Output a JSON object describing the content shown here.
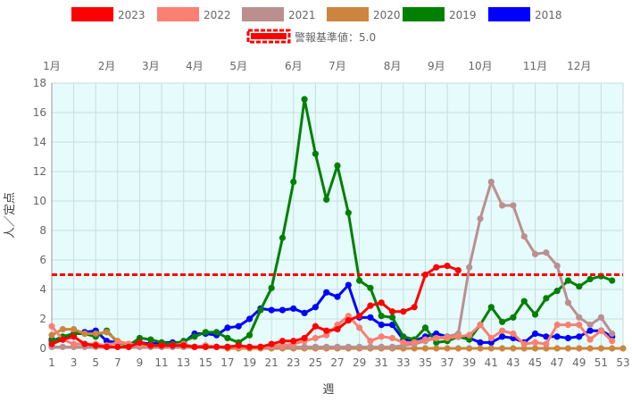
{
  "chart_data": {
    "type": "line",
    "xlabel": "週",
    "ylabel": "人／定点",
    "ylim": [
      0,
      18
    ],
    "yticks": [
      0,
      2,
      4,
      6,
      8,
      10,
      12,
      14,
      16,
      18
    ],
    "xlim": [
      1,
      53
    ],
    "xticks": [
      1,
      3,
      5,
      7,
      9,
      11,
      13,
      15,
      17,
      19,
      21,
      23,
      25,
      27,
      29,
      31,
      33,
      35,
      37,
      39,
      41,
      43,
      45,
      47,
      49,
      51,
      53
    ],
    "month_labels": [
      {
        "label": "1月",
        "week": 1
      },
      {
        "label": "2月",
        "week": 6
      },
      {
        "label": "3月",
        "week": 10
      },
      {
        "label": "4月",
        "week": 14
      },
      {
        "label": "5月",
        "week": 18
      },
      {
        "label": "6月",
        "week": 23
      },
      {
        "label": "7月",
        "week": 27
      },
      {
        "label": "8月",
        "week": 32
      },
      {
        "label": "9月",
        "week": 36
      },
      {
        "label": "10月",
        "week": 40
      },
      {
        "label": "11月",
        "week": 45
      },
      {
        "label": "12月",
        "week": 49
      }
    ],
    "threshold": {
      "label": "警報基準値：5.0",
      "value": 5.0,
      "color": "#ff0000"
    },
    "grid": true,
    "plot_background": "#e6fbfb",
    "legend_position": "top",
    "series": [
      {
        "name": "2023",
        "color": "#ff0000",
        "values": [
          0.3,
          0.6,
          0.8,
          0.3,
          0.2,
          0.1,
          0.1,
          0.1,
          0.4,
          0.2,
          0.2,
          0.2,
          0.2,
          0.1,
          0.1,
          0.1,
          0.1,
          0.2,
          0.1,
          0.1,
          0.3,
          0.5,
          0.5,
          0.7,
          1.5,
          1.2,
          1.3,
          1.9,
          2.2,
          2.9,
          3.1,
          2.5,
          2.5,
          2.8,
          5.0,
          5.5,
          5.6,
          5.3
        ]
      },
      {
        "name": "2022",
        "color": "#fa8072",
        "values": [
          1.5,
          0.6,
          0.3,
          0.3,
          0.3,
          0.2,
          0.4,
          0.3,
          0.2,
          0.2,
          0.2,
          0.2,
          0.3,
          0.1,
          0.2,
          0.1,
          0.1,
          0.1,
          0.1,
          0.1,
          0.2,
          0.2,
          0.3,
          0.5,
          0.7,
          0.9,
          1.6,
          2.2,
          1.4,
          0.5,
          0.8,
          0.7,
          0.4,
          0.4,
          0.6,
          0.7,
          0.7,
          0.8,
          0.9,
          1.6,
          0.7,
          1.2,
          1.0,
          0.3,
          0.4,
          0.3,
          1.6,
          1.6,
          1.6,
          0.6,
          1.2,
          0.5
        ]
      },
      {
        "name": "2021",
        "color": "#bc8f8f",
        "values": [
          0.1,
          0.1,
          0.1,
          0.1,
          0.1,
          0.1,
          0.1,
          0.1,
          0.1,
          0.1,
          0.1,
          0.1,
          0.1,
          0.1,
          0.1,
          0.1,
          0.1,
          0.1,
          0.1,
          0.1,
          0.1,
          0.1,
          0.1,
          0.1,
          0.1,
          0.1,
          0.1,
          0.1,
          0.1,
          0.1,
          0.1,
          0.1,
          0.2,
          0.3,
          0.5,
          0.7,
          0.8,
          1.0,
          5.5,
          8.8,
          11.3,
          9.7,
          9.7,
          7.6,
          6.4,
          6.5,
          5.6,
          3.1,
          2.1,
          1.6,
          2.1,
          1.0
        ]
      },
      {
        "name": "2020",
        "color": "#cd853f",
        "values": [
          0.9,
          1.3,
          1.3,
          1.0,
          1.0,
          1.1,
          0.5,
          0.3,
          0.2,
          0.1,
          0.1,
          0.1,
          0.1,
          0.1,
          0.1,
          0.1,
          0.0,
          0.0,
          0.0,
          0.0,
          0.0,
          0.0,
          0.0,
          0.0,
          0.0,
          0.0,
          0.0,
          0.0,
          0.0,
          0.0,
          0.0,
          0.0,
          0.0,
          0.0,
          0.0,
          0.0,
          0.0,
          0.0,
          0.0,
          0.0,
          0.0,
          0.0,
          0.0,
          0.0,
          0.0,
          0.0,
          0.0,
          0.0,
          0.0,
          0.0,
          0.0,
          0.0,
          0.0
        ]
      },
      {
        "name": "2019",
        "color": "#008000",
        "values": [
          0.5,
          0.8,
          1.0,
          1.0,
          0.8,
          1.2,
          0.4,
          0.2,
          0.7,
          0.6,
          0.4,
          0.3,
          0.5,
          0.8,
          1.1,
          1.1,
          0.7,
          0.4,
          0.9,
          2.6,
          4.1,
          7.5,
          11.3,
          16.9,
          13.2,
          10.1,
          12.4,
          9.2,
          4.6,
          4.1,
          2.2,
          2.1,
          0.8,
          0.6,
          1.4,
          0.4,
          0.5,
          0.8,
          0.6,
          1.6,
          2.8,
          1.8,
          2.1,
          3.2,
          2.3,
          3.4,
          3.9,
          4.6,
          4.2,
          4.7,
          4.9,
          4.6
        ]
      },
      {
        "name": "2018",
        "color": "#0000ff",
        "values": [
          0.6,
          0.6,
          1.0,
          1.1,
          1.2,
          0.5,
          0.4,
          0.3,
          0.4,
          0.3,
          0.4,
          0.4,
          0.4,
          1.0,
          1.0,
          0.9,
          1.4,
          1.5,
          2.0,
          2.7,
          2.6,
          2.6,
          2.7,
          2.4,
          2.8,
          3.8,
          3.5,
          4.3,
          2.1,
          2.1,
          1.6,
          1.6,
          0.6,
          0.5,
          0.8,
          1.0,
          0.8,
          0.8,
          0.7,
          0.4,
          0.4,
          0.8,
          0.7,
          0.4,
          1.0,
          0.8,
          0.8,
          0.7,
          0.8,
          1.2,
          1.2,
          0.8
        ]
      }
    ]
  }
}
